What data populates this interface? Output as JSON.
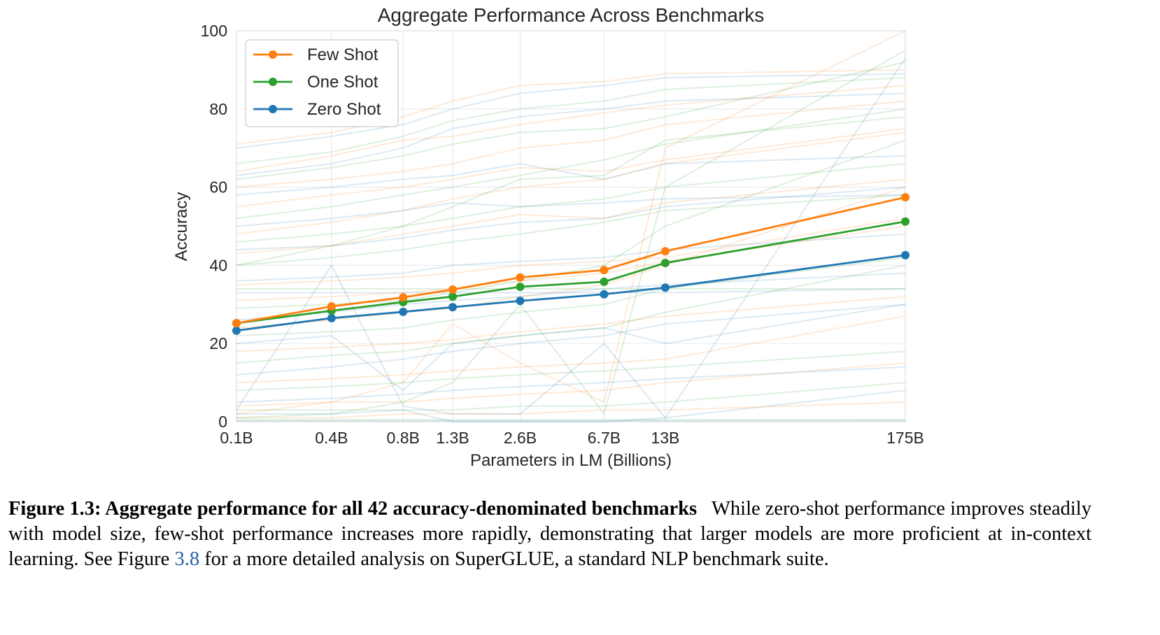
{
  "chart_data": {
    "type": "line",
    "title": "Aggregate Performance Across Benchmarks",
    "xlabel": "Parameters in LM (Billions)",
    "ylabel": "Accuracy",
    "x": [
      "0.1B",
      "0.4B",
      "0.8B",
      "1.3B",
      "2.6B",
      "6.7B",
      "13B",
      "175B"
    ],
    "x_values_billions": [
      0.125,
      0.35,
      0.76,
      1.3,
      2.7,
      6.7,
      13,
      175
    ],
    "x_scale": "log",
    "ylim": [
      0,
      100
    ],
    "yticks": [
      0,
      20,
      40,
      60,
      80,
      100
    ],
    "grid": true,
    "legend_position": "top-left",
    "series": [
      {
        "name": "Few Shot",
        "color": "#ff7f0e",
        "values": [
          25.2,
          29.5,
          31.8,
          33.8,
          36.9,
          38.8,
          43.6,
          57.4
        ]
      },
      {
        "name": "One Shot",
        "color": "#2ca02c",
        "values": [
          25.2,
          28.4,
          30.6,
          32.0,
          34.5,
          35.8,
          40.6,
          51.2
        ]
      },
      {
        "name": "Zero Shot",
        "color": "#1f77b4",
        "values": [
          23.3,
          26.5,
          28.1,
          29.3,
          30.9,
          32.6,
          34.3,
          42.6
        ]
      }
    ],
    "background_series_note": "Faint per-benchmark lines (42 benchmarks × 3 settings), approximated",
    "background_series": [
      {
        "color": "#1f77b4",
        "values": [
          70,
          73,
          76,
          80,
          84,
          86,
          88,
          89
        ]
      },
      {
        "color": "#ff7f0e",
        "values": [
          71,
          74,
          78,
          82,
          86,
          87,
          89,
          90
        ]
      },
      {
        "color": "#2ca02c",
        "values": [
          66,
          69,
          73,
          77,
          80,
          82,
          85,
          88
        ]
      },
      {
        "color": "#1f77b4",
        "values": [
          63,
          66,
          70,
          75,
          78,
          80,
          82,
          84
        ]
      },
      {
        "color": "#ff7f0e",
        "values": [
          64,
          68,
          72,
          73,
          76,
          79,
          81,
          86
        ]
      },
      {
        "color": "#2ca02c",
        "values": [
          62,
          65,
          68,
          71,
          74,
          75,
          78,
          92
        ]
      },
      {
        "color": "#1f77b4",
        "values": [
          58,
          60,
          62,
          63,
          66,
          62,
          66,
          68
        ]
      },
      {
        "color": "#ff7f0e",
        "values": [
          55,
          58,
          60,
          62,
          65,
          64,
          67,
          75
        ]
      },
      {
        "color": "#2ca02c",
        "values": [
          52,
          55,
          58,
          60,
          63,
          67,
          71,
          80
        ]
      },
      {
        "color": "#1f77b4",
        "values": [
          50,
          52,
          54,
          56,
          55,
          56,
          57,
          58
        ]
      },
      {
        "color": "#ff7f0e",
        "values": [
          48,
          51,
          54,
          57,
          60,
          62,
          66,
          74
        ]
      },
      {
        "color": "#2ca02c",
        "values": [
          46,
          48,
          50,
          52,
          55,
          57,
          60,
          66
        ]
      },
      {
        "color": "#1f77b4",
        "values": [
          44,
          45,
          47,
          49,
          51,
          52,
          55,
          60
        ]
      },
      {
        "color": "#ff7f0e",
        "values": [
          43,
          45,
          48,
          50,
          53,
          52,
          56,
          62
        ]
      },
      {
        "color": "#2ca02c",
        "values": [
          40,
          42,
          44,
          46,
          48,
          51,
          54,
          58
        ]
      },
      {
        "color": "#1f77b4",
        "values": [
          36,
          37,
          38,
          40,
          41,
          42,
          44,
          48
        ]
      },
      {
        "color": "#ff7f0e",
        "values": [
          35,
          36,
          37,
          38,
          40,
          41,
          42,
          52
        ]
      },
      {
        "color": "#2ca02c",
        "values": [
          34,
          34,
          34,
          34,
          34,
          34,
          34,
          34
        ]
      },
      {
        "color": "#1f77b4",
        "values": [
          33,
          33,
          33,
          33,
          33,
          33,
          33,
          34
        ]
      },
      {
        "color": "#ff7f0e",
        "values": [
          31,
          32,
          33,
          34,
          36,
          38,
          41,
          50
        ]
      },
      {
        "color": "#2ca02c",
        "values": [
          29,
          30,
          31,
          33,
          36,
          40,
          50,
          72
        ]
      },
      {
        "color": "#1f77b4",
        "values": [
          26,
          28,
          30,
          31,
          32,
          34,
          35,
          38
        ]
      },
      {
        "color": "#ff7f0e",
        "values": [
          24,
          26,
          28,
          29,
          32,
          35,
          40,
          60
        ]
      },
      {
        "color": "#2ca02c",
        "values": [
          22,
          23,
          24,
          26,
          28,
          30,
          34,
          42
        ]
      },
      {
        "color": "#1f77b4",
        "values": [
          20,
          22,
          8,
          20,
          22,
          24,
          20,
          30
        ]
      },
      {
        "color": "#ff7f0e",
        "values": [
          18,
          19,
          20,
          21,
          23,
          25,
          27,
          32
        ]
      },
      {
        "color": "#2ca02c",
        "values": [
          15,
          17,
          18,
          20,
          22,
          24,
          28,
          40
        ]
      },
      {
        "color": "#1f77b4",
        "values": [
          12,
          14,
          16,
          18,
          20,
          22,
          25,
          30
        ]
      },
      {
        "color": "#ff7f0e",
        "values": [
          10,
          11,
          12,
          13,
          14,
          15,
          16,
          27
        ]
      },
      {
        "color": "#2ca02c",
        "values": [
          8,
          9,
          10,
          11,
          12,
          13,
          14,
          18
        ]
      },
      {
        "color": "#1f77b4",
        "values": [
          5,
          6,
          7,
          8,
          9,
          10,
          11,
          14
        ]
      },
      {
        "color": "#ff7f0e",
        "values": [
          4,
          5,
          5,
          6,
          7,
          8,
          10,
          15
        ]
      },
      {
        "color": "#2ca02c",
        "values": [
          3,
          3,
          3,
          3,
          4,
          4,
          5,
          10
        ]
      },
      {
        "color": "#1f77b4",
        "values": [
          2,
          2,
          3,
          0,
          0,
          0,
          1,
          8
        ]
      },
      {
        "color": "#ff7f0e",
        "values": [
          1,
          1,
          2,
          2,
          2,
          3,
          3,
          5
        ]
      },
      {
        "color": "#2ca02c",
        "values": [
          0.5,
          0.5,
          0.5,
          0.5,
          0.5,
          0.5,
          0.5,
          0.5
        ]
      },
      {
        "color": "#1f77b4",
        "values": [
          0.2,
          0.2,
          0.2,
          0.2,
          0.2,
          0.2,
          0.2,
          0.3
        ]
      },
      {
        "color": "#2ca02c",
        "values": [
          1,
          2,
          5,
          10,
          30,
          2,
          60,
          95
        ]
      },
      {
        "color": "#ff7f0e",
        "values": [
          2,
          5,
          10,
          25,
          15,
          5,
          70,
          100
        ]
      },
      {
        "color": "#1f77b4",
        "values": [
          3,
          40,
          4,
          2,
          2,
          20,
          1,
          93
        ]
      },
      {
        "color": "#2ca02c",
        "values": [
          40,
          45,
          50,
          55,
          62,
          63,
          72,
          78
        ]
      },
      {
        "color": "#ff7f0e",
        "values": [
          60,
          62,
          64,
          66,
          70,
          72,
          76,
          82
        ]
      }
    ]
  },
  "caption": {
    "label": "Figure 1.3: Aggregate performance for all 42 accuracy-denominated benchmarks",
    "text_before_ref": "While zero-shot performance improves steadily with model size, few-shot performance increases more rapidly, demonstrating that larger models are more proficient at in-context learning. See Figure ",
    "ref": "3.8",
    "text_after_ref": " for a more detailed analysis on SuperGLUE, a standard NLP benchmark suite."
  }
}
